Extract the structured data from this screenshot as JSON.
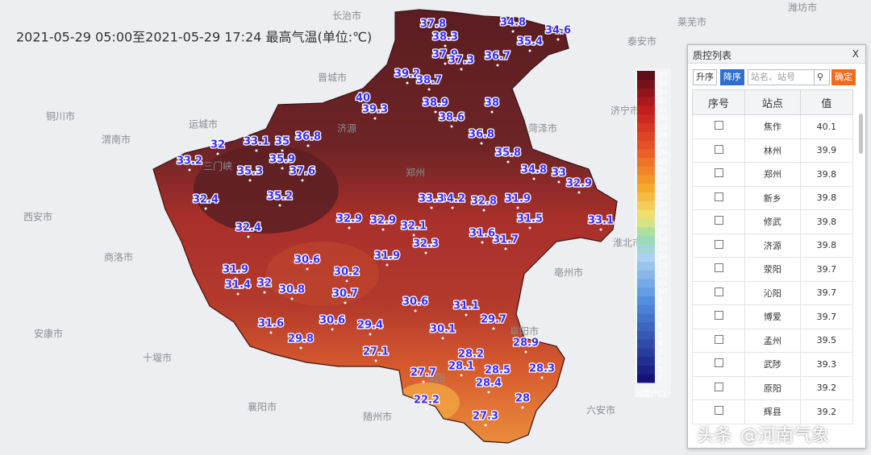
{
  "title": "2021-05-29 05:00至2021-05-29 17:24 最高气温(单位:℃)",
  "map": {
    "cities": [
      "长治市",
      "晋城市",
      "运城市",
      "渭南市",
      "铜川市",
      "西安市",
      "商洛市",
      "安康市",
      "十堰市",
      "襄阳市",
      "随州市",
      "菏泽市",
      "济宁市",
      "泰安市",
      "莱芜市",
      "潍坊市",
      "淮北市",
      "亳州市",
      "阜阳市",
      "六安市",
      "三门峡",
      "济源",
      "郑州",
      "信阳"
    ],
    "temps": [
      37.8,
      38.3,
      34.8,
      34.6,
      35.4,
      36.7,
      37.9,
      37.3,
      39.2,
      38.7,
      38,
      38.9,
      38.6,
      39.3,
      40,
      36.8,
      36.8,
      33.1,
      35,
      32,
      33.2,
      35.3,
      35.9,
      37.6,
      35.8,
      34.8,
      33,
      32.9,
      32.4,
      35.2,
      33.1,
      31.5,
      32.4,
      30.6,
      30.2,
      31.9,
      31.4,
      32,
      30.8,
      30.7,
      31.6,
      29.8,
      30.6,
      29.4,
      27.1,
      30.6,
      31.1,
      29.7,
      28.9,
      28.2,
      28.1,
      27.7,
      28.5,
      28.3,
      28.4,
      22.2,
      28,
      27.3,
      30.1,
      32.3,
      32.1,
      32.8,
      34.2,
      33.3,
      31.9,
      31.7,
      31.6,
      32.9,
      32.9,
      31.9
    ]
  },
  "legend": {
    "ticks": [
      0,
      1,
      2,
      3,
      4,
      5,
      6,
      7,
      8,
      9,
      10,
      11,
      12,
      13,
      14,
      15,
      16,
      17,
      18,
      19,
      20,
      21,
      22,
      23,
      24,
      25,
      26,
      27,
      28,
      29,
      30,
      31,
      32,
      33,
      34,
      35
    ],
    "unit": "温度(°C)"
  },
  "panel": {
    "title": "质控列表",
    "close": "X",
    "asc": "升序",
    "desc": "降序",
    "search_placeholder": "站名、站号",
    "confirm": "确定",
    "headers": [
      "序号",
      "站点",
      "值"
    ],
    "rows": [
      {
        "station": "焦作",
        "value": 40.1
      },
      {
        "station": "林州",
        "value": 39.9
      },
      {
        "station": "郑州",
        "value": 39.8
      },
      {
        "station": "新乡",
        "value": 39.8
      },
      {
        "station": "修武",
        "value": 39.8
      },
      {
        "station": "济源",
        "value": 39.8
      },
      {
        "station": "荥阳",
        "value": 39.7
      },
      {
        "station": "沁阳",
        "value": 39.7
      },
      {
        "station": "博爱",
        "value": 39.7
      },
      {
        "station": "孟州",
        "value": 39.5
      },
      {
        "station": "武陟",
        "value": 39.3
      },
      {
        "station": "原阳",
        "value": 39.2
      },
      {
        "station": "辉县",
        "value": 39.2
      }
    ]
  },
  "watermark": {
    "brand": "头条",
    "account": "@河南气象"
  }
}
